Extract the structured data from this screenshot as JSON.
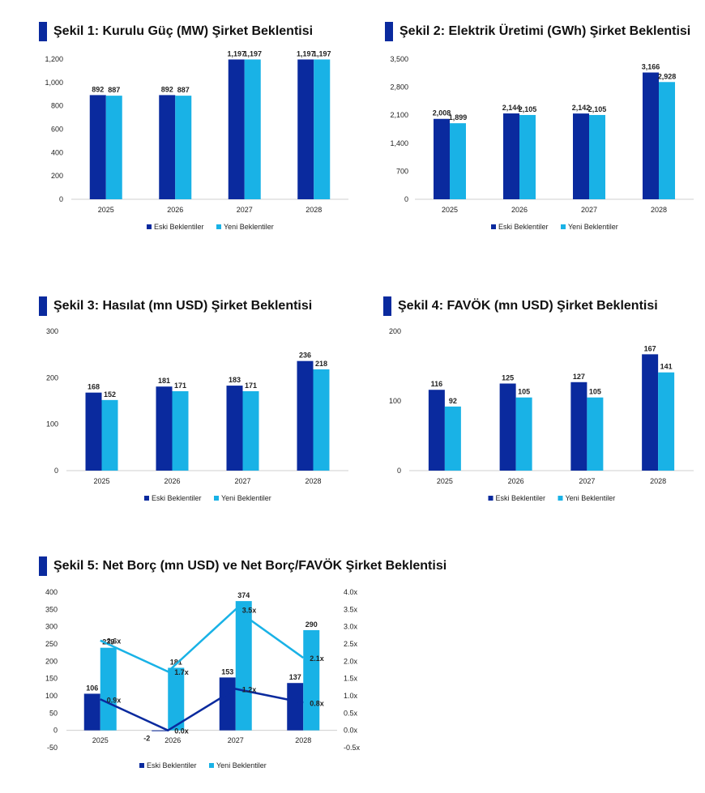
{
  "colors": {
    "old": "#0a2a9e",
    "new": "#19b2e6",
    "axis": "#cfcfcf",
    "title_bar": "#0a2a9e"
  },
  "legend": {
    "old": "Eski Beklentiler",
    "new": "Yeni Beklentiler"
  },
  "chart_data": [
    {
      "type": "bar",
      "title": "Şekil 1: Kurulu Güç (MW) Şirket Beklentisi",
      "categories": [
        "2025",
        "2026",
        "2027",
        "2028"
      ],
      "series": [
        {
          "name": "Eski Beklentiler",
          "values": [
            892,
            892,
            1197,
            1197
          ],
          "labels": [
            "892",
            "892",
            "1,197",
            "1,197"
          ]
        },
        {
          "name": "Yeni Beklentiler",
          "values": [
            887,
            887,
            1197,
            1197
          ],
          "labels": [
            "887",
            "887",
            "1,197",
            "1,197"
          ]
        }
      ],
      "ylim": [
        0,
        1200
      ],
      "yticks": [
        0,
        200,
        400,
        600,
        800,
        1000,
        1200
      ],
      "ytick_labels": [
        "0",
        "200",
        "400",
        "600",
        "800",
        "1,000",
        "1,200"
      ]
    },
    {
      "type": "bar",
      "title": "Şekil 2: Elektrik Üretimi (GWh) Şirket Beklentisi",
      "categories": [
        "2025",
        "2026",
        "2027",
        "2028"
      ],
      "series": [
        {
          "name": "Eski Beklentiler",
          "values": [
            2008,
            2144,
            2142,
            3166
          ],
          "labels": [
            "2,008",
            "2,144",
            "2,142",
            "3,166"
          ]
        },
        {
          "name": "Yeni Beklentiler",
          "values": [
            1899,
            2105,
            2105,
            2928
          ],
          "labels": [
            "1,899",
            "2,105",
            "2,105",
            "2,928"
          ]
        }
      ],
      "ylim": [
        0,
        3500
      ],
      "yticks": [
        0,
        700,
        1400,
        2100,
        2800,
        3500
      ],
      "ytick_labels": [
        "0",
        "700",
        "1,400",
        "2,100",
        "2,800",
        "3,500"
      ]
    },
    {
      "type": "bar",
      "title": "Şekil 3: Hasılat (mn USD) Şirket Beklentisi",
      "categories": [
        "2025",
        "2026",
        "2027",
        "2028"
      ],
      "series": [
        {
          "name": "Eski Beklentiler",
          "values": [
            168,
            181,
            183,
            236
          ],
          "labels": [
            "168",
            "181",
            "183",
            "236"
          ]
        },
        {
          "name": "Yeni Beklentiler",
          "values": [
            152,
            171,
            171,
            218
          ],
          "labels": [
            "152",
            "171",
            "171",
            "218"
          ]
        }
      ],
      "ylim": [
        0,
        300
      ],
      "yticks": [
        0,
        100,
        200,
        300
      ],
      "ytick_labels": [
        "0",
        "100",
        "200",
        "300"
      ]
    },
    {
      "type": "bar",
      "title": "Şekil 4: FAVÖK (mn USD) Şirket Beklentisi",
      "categories": [
        "2025",
        "2026",
        "2027",
        "2028"
      ],
      "series": [
        {
          "name": "Eski Beklentiler",
          "values": [
            116,
            125,
            127,
            167
          ],
          "labels": [
            "116",
            "125",
            "127",
            "167"
          ]
        },
        {
          "name": "Yeni Beklentiler",
          "values": [
            92,
            105,
            105,
            141
          ],
          "labels": [
            "92",
            "105",
            "105",
            "141"
          ]
        }
      ],
      "ylim": [
        0,
        200
      ],
      "yticks": [
        0,
        100,
        200
      ],
      "ytick_labels": [
        "0",
        "100",
        "200"
      ]
    },
    {
      "type": "bar+line",
      "title": "Şekil 5: Net Borç (mn USD) ve Net Borç/FAVÖK Şirket Beklentisi",
      "categories": [
        "2025",
        "2026",
        "2027",
        "2028"
      ],
      "series": [
        {
          "name": "Eski Beklentiler",
          "values": [
            106,
            -2,
            153,
            137
          ],
          "labels": [
            "106",
            "-2",
            "153",
            "137"
          ]
        },
        {
          "name": "Yeni Beklentiler",
          "values": [
            239,
            181,
            374,
            290
          ],
          "labels": [
            "239",
            "181",
            "374",
            "290"
          ]
        }
      ],
      "ratio_series": [
        {
          "name": "Eski Beklentiler",
          "values": [
            0.9,
            0.0,
            1.2,
            0.8
          ],
          "labels": [
            "0.9x",
            "0.0x",
            "1.2x",
            "0.8x"
          ]
        },
        {
          "name": "Yeni Beklentiler",
          "values": [
            2.6,
            1.7,
            3.5,
            2.1
          ],
          "labels": [
            "2.6x",
            "1.7x",
            "3.5x",
            "2.1x"
          ]
        }
      ],
      "ylim": [
        -50,
        400
      ],
      "yticks": [
        -50,
        0,
        50,
        100,
        150,
        200,
        250,
        300,
        350,
        400
      ],
      "ytick_labels": [
        "-50",
        "0",
        "50",
        "100",
        "150",
        "200",
        "250",
        "300",
        "350",
        "400"
      ],
      "y2lim": [
        -0.5,
        4.0
      ],
      "y2ticks": [
        -0.5,
        0,
        0.5,
        1,
        1.5,
        2,
        2.5,
        3,
        3.5,
        4
      ],
      "y2tick_labels": [
        "-0.5x",
        "0.0x",
        "0.5x",
        "1.0x",
        "1.5x",
        "2.0x",
        "2.5x",
        "3.0x",
        "3.5x",
        "4.0x"
      ]
    }
  ]
}
